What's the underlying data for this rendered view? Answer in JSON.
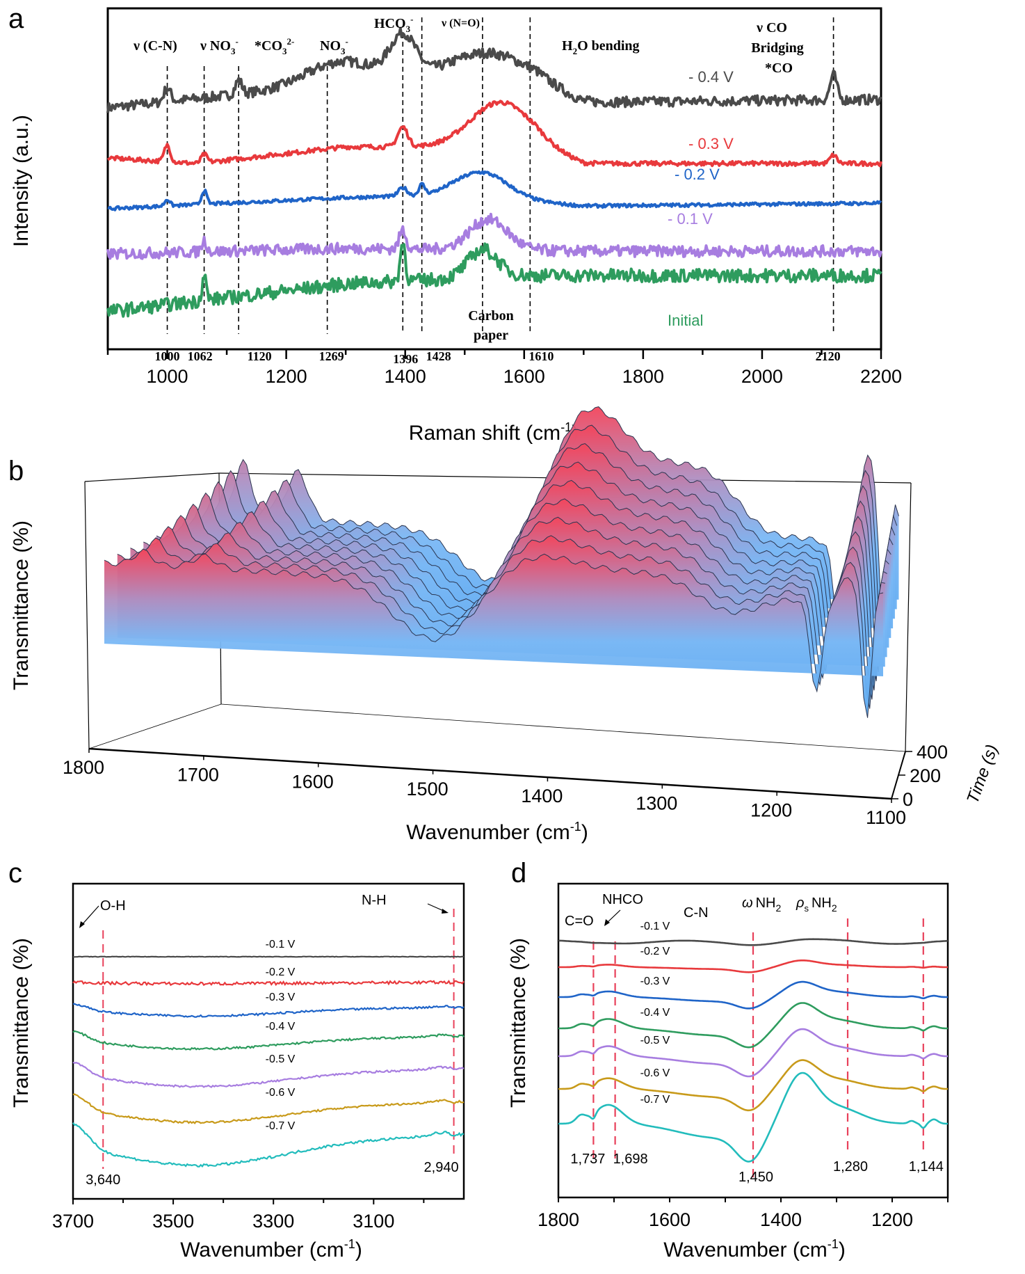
{
  "chart_data": [
    {
      "panel": "a",
      "type": "line",
      "xlabel": "Raman shift (cm-1)",
      "xlabel_main": "Raman shift (cm",
      "xlabel_sup": "-1",
      "xlabel_close": ")",
      "ylabel": "Intensity (a.u.)",
      "xlim": [
        900,
        2200
      ],
      "xticks": [
        1000,
        1200,
        1400,
        1600,
        1800,
        2000,
        2200
      ],
      "grid": false,
      "series": [
        {
          "name": "- 0.4 V",
          "color": "#4a4a4a",
          "offset": 4,
          "noise": 0.09,
          "peaks": [
            [
              1000,
              0.25,
              8
            ],
            [
              1120,
              0.25,
              8
            ],
            [
              1396,
              0.7,
              30
            ],
            [
              1290,
              0.4,
              80
            ],
            [
              1540,
              0.5,
              90
            ],
            [
              2120,
              0.45,
              8
            ]
          ],
          "base": [
            [
              900,
              0
            ],
            [
              1400,
              0.55
            ],
            [
              1620,
              0.45
            ],
            [
              1700,
              0.1
            ],
            [
              2200,
              0.15
            ]
          ]
        },
        {
          "name": "- 0.3 V",
          "color": "#e8393c",
          "offset": 3,
          "noise": 0.04,
          "peaks": [
            [
              1000,
              0.3,
              7
            ],
            [
              1062,
              0.15,
              7
            ],
            [
              1396,
              0.35,
              12
            ],
            [
              1560,
              0.8,
              70
            ],
            [
              2120,
              0.15,
              8
            ]
          ],
          "base": [
            [
              900,
              0.1
            ],
            [
              1050,
              0
            ],
            [
              1300,
              0.3
            ],
            [
              1620,
              0.3
            ],
            [
              1700,
              0
            ],
            [
              2200,
              0
            ]
          ]
        },
        {
          "name": "- 0.2 V",
          "color": "#1f64c8",
          "offset": 2,
          "noise": 0.03,
          "peaks": [
            [
              1000,
              0.12,
              6
            ],
            [
              1062,
              0.25,
              6
            ],
            [
              1396,
              0.15,
              10
            ],
            [
              1428,
              0.18,
              7
            ],
            [
              1530,
              0.45,
              60
            ]
          ],
          "base": [
            [
              900,
              0
            ],
            [
              1300,
              0.2
            ],
            [
              1480,
              0.25
            ],
            [
              1700,
              0.05
            ],
            [
              2200,
              0.1
            ]
          ]
        },
        {
          "name": "- 0.1 V",
          "color": "#a77de0",
          "offset": 1,
          "noise": 0.1,
          "peaks": [
            [
              1062,
              0.2,
              6
            ],
            [
              1396,
              0.35,
              8
            ],
            [
              1540,
              0.55,
              45
            ]
          ],
          "base": [
            [
              900,
              0
            ],
            [
              1300,
              0.1
            ],
            [
              1700,
              0.05
            ],
            [
              2200,
              0.05
            ]
          ]
        },
        {
          "name": "Initial",
          "color": "#2e9c5e",
          "offset": 0,
          "noise": 0.12,
          "peaks": [
            [
              1062,
              0.45,
              5
            ],
            [
              1396,
              0.7,
              6
            ],
            [
              1530,
              0.5,
              35
            ]
          ],
          "base": [
            [
              900,
              -0.1
            ],
            [
              1300,
              0.4
            ],
            [
              1600,
              0.55
            ],
            [
              2200,
              0.55
            ]
          ]
        }
      ],
      "reference_lines": [
        1000,
        1062,
        1120,
        1269,
        1396,
        1428,
        1530,
        1610,
        2120
      ],
      "reference_labels": [
        "1000",
        "1062",
        "1120",
        "1269",
        "1396",
        "1428",
        "1610",
        "2120"
      ],
      "annotations": {
        "cn": "ν (C-N)",
        "no3_nu": "ν NO",
        "co3": "*CO",
        "no3": "NO",
        "hco3": "HCO",
        "no": "ν (N=O)",
        "h2o": "H",
        "h2o_rest": "O bending",
        "vco": "ν CO",
        "bridging": "Bridging",
        "star_co": "*CO",
        "carbon": "Carbon",
        "paper": "paper",
        "sub3": "3",
        "sub2": "2",
        "sup_minus": "-",
        "sup_2minus": "2-"
      }
    },
    {
      "panel": "b",
      "type": "area",
      "subtype": "3d-surface",
      "xlabel": "Wavenumber (cm-1)",
      "xlabel_main": "Wavenumber (cm",
      "xlabel_sup": "-1",
      "xlabel_close": ")",
      "ylabel": "Transmittance (%)",
      "zlabel": "Time (s)",
      "xlim": [
        1800,
        1100
      ],
      "xticks": [
        1800,
        1700,
        1600,
        1500,
        1400,
        1300,
        1200,
        1100
      ],
      "zticks": [
        0,
        200,
        400
      ],
      "colormap": [
        "#5aa8f0",
        "#f4445a"
      ],
      "slices": 9
    },
    {
      "panel": "c",
      "type": "line",
      "xlabel": "Wavenumber (cm-1)",
      "xlabel_main": "Wavenumber (cm",
      "xlabel_sup": "-1",
      "xlabel_close": ")",
      "ylabel": "Transmittance (%)",
      "xlim": [
        3700,
        2920
      ],
      "xticks": [
        3700,
        3500,
        3300,
        3100
      ],
      "series": [
        {
          "name": "-0.1 V",
          "color": "#4a4a4a",
          "offset": 6,
          "depth": 0.0,
          "noise": 0.01
        },
        {
          "name": "-0.2 V",
          "color": "#e8393c",
          "offset": 5,
          "depth": 0.05,
          "noise": 0.06
        },
        {
          "name": "-0.3 V",
          "color": "#1f64c8",
          "offset": 4,
          "depth": 0.35,
          "noise": 0.04
        },
        {
          "name": "-0.4 V",
          "color": "#2e9c5e",
          "offset": 3,
          "depth": 0.5,
          "noise": 0.04
        },
        {
          "name": "-0.5 V",
          "color": "#a77de0",
          "offset": 2,
          "depth": 0.7,
          "noise": 0.04
        },
        {
          "name": "-0.6 V",
          "color": "#c89a1a",
          "offset": 1,
          "depth": 0.8,
          "noise": 0.04
        },
        {
          "name": "-0.7 V",
          "color": "#22bcbc",
          "offset": 0,
          "depth": 1.2,
          "noise": 0.05
        }
      ],
      "reference_lines": [
        3640,
        2940
      ],
      "reference_labels": [
        "3,640",
        "2,940"
      ],
      "annotations": {
        "oh": "O-H",
        "nh": "N-H"
      }
    },
    {
      "panel": "d",
      "type": "line",
      "xlabel": "Wavenumber (cm-1)",
      "xlabel_main": "Wavenumber (cm",
      "xlabel_sup": "-1",
      "xlabel_close": ")",
      "ylabel": "Transmittance (%)",
      "xlim": [
        1800,
        1100
      ],
      "xticks": [
        1800,
        1600,
        1400,
        1200
      ],
      "series": [
        {
          "name": "-0.1 V",
          "color": "#4a4a4a",
          "offset": 6,
          "amp": 0.05
        },
        {
          "name": "-0.2 V",
          "color": "#e8393c",
          "offset": 5,
          "amp": 0.2
        },
        {
          "name": "-0.3 V",
          "color": "#1f64c8",
          "offset": 4,
          "amp": 0.45
        },
        {
          "name": "-0.4 V",
          "color": "#2e9c5e",
          "offset": 3,
          "amp": 0.75
        },
        {
          "name": "-0.5 V",
          "color": "#a77de0",
          "offset": 2,
          "amp": 0.8
        },
        {
          "name": "-0.6 V",
          "color": "#c89a1a",
          "offset": 1,
          "amp": 0.85
        },
        {
          "name": "-0.7 V",
          "color": "#22bcbc",
          "offset": 0,
          "amp": 1.5
        }
      ],
      "reference_lines": [
        1737,
        1698,
        1450,
        1280,
        1144
      ],
      "reference_labels": [
        "1,737",
        "1,698",
        "1,450",
        "1,280",
        "1,144"
      ],
      "annotations": {
        "co": "C=O",
        "nhco": "NHCO",
        "cn": "C-N",
        "omega": "ω",
        "nh2": "NH",
        "rho": "ρ",
        "s": "s",
        "sub2": "2"
      }
    }
  ],
  "panel_letters": {
    "a": "a",
    "b": "b",
    "c": "c",
    "d": "d"
  }
}
